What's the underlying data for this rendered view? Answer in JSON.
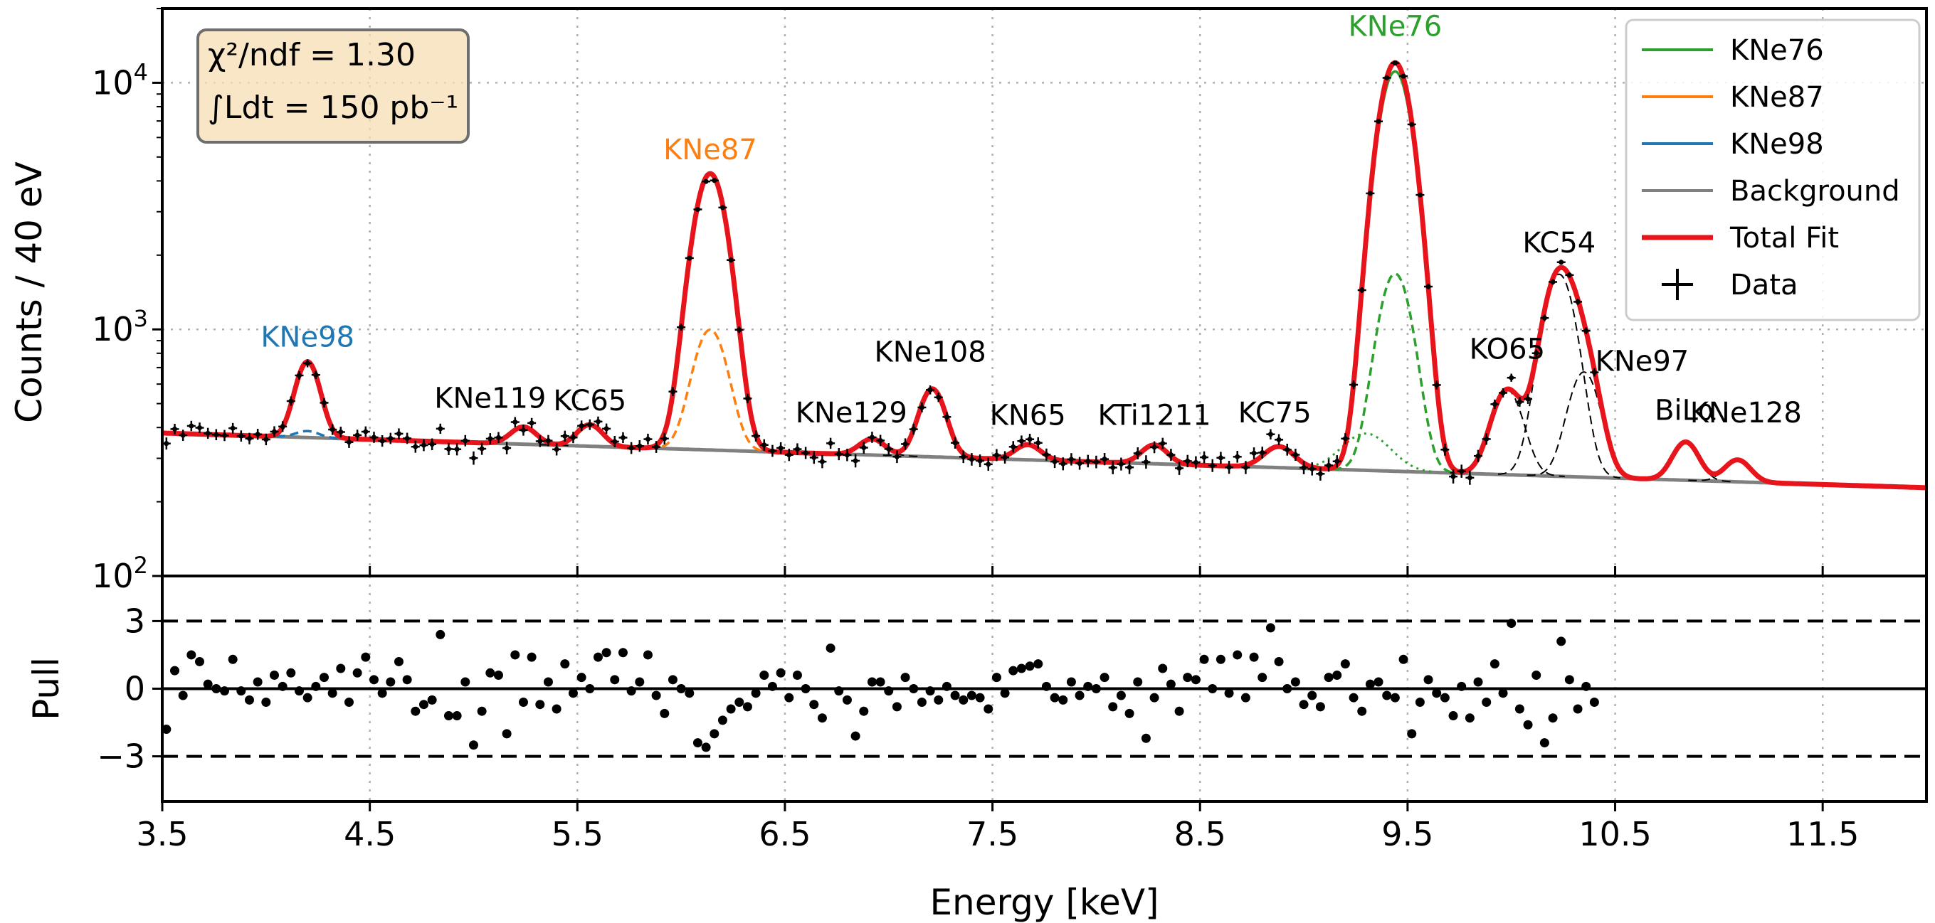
{
  "chart_data": [
    {
      "type": "line",
      "subplot": "spectrum",
      "ylabel": "Counts / 40 eV",
      "yscale": "log",
      "xlim": [
        3.5,
        12.0
      ],
      "ylim": [
        100,
        20000
      ],
      "y_ticks": [
        {
          "value": 100,
          "base": "10",
          "exp": "2"
        },
        {
          "value": 1000,
          "base": "10",
          "exp": "3"
        },
        {
          "value": 10000,
          "base": "10",
          "exp": "4"
        }
      ],
      "grid": true,
      "legend_position": "top-right",
      "info_box": {
        "chi2_label": "χ²/ndf = 1.30",
        "lumi_label": "∫Ldt = 150 pb⁻¹"
      },
      "background": {
        "x": [
          3.5,
          12.0
        ],
        "y": [
          380,
          228
        ],
        "color": "#808080"
      },
      "peaks": [
        {
          "label": "KNe98",
          "center": 4.2,
          "sigma": 0.055,
          "amplitude": 375,
          "color": "#1f77b4",
          "label_y": 850,
          "label_x": 4.2
        },
        {
          "label": "KNe119",
          "center": 5.24,
          "sigma": 0.06,
          "amplitude": 60,
          "color": "#000000",
          "label_y": 480,
          "label_x": 5.08
        },
        {
          "label": "KC65",
          "center": 5.56,
          "sigma": 0.06,
          "amplitude": 75,
          "color": "#000000",
          "label_y": 470,
          "label_x": 5.56
        },
        {
          "label": "KNe87",
          "center": 6.14,
          "sigma": 0.075,
          "amplitude": 3960,
          "color": "#ff7f0e",
          "label_y": 4900,
          "label_x": 6.14
        },
        {
          "label": "KNe129",
          "center": 6.92,
          "sigma": 0.06,
          "amplitude": 50,
          "color": "#000000",
          "label_y": 420,
          "label_x": 6.82
        },
        {
          "label": "KNe108",
          "center": 7.21,
          "sigma": 0.06,
          "amplitude": 270,
          "color": "#000000",
          "label_y": 740,
          "label_x": 7.2
        },
        {
          "label": "KN65",
          "center": 7.67,
          "sigma": 0.06,
          "amplitude": 45,
          "color": "#000000",
          "label_y": 410,
          "label_x": 7.67
        },
        {
          "label": "KTi1211",
          "center": 8.28,
          "sigma": 0.06,
          "amplitude": 55,
          "color": "#000000",
          "label_y": 410,
          "label_x": 8.28
        },
        {
          "label": "KC75",
          "center": 8.88,
          "sigma": 0.07,
          "amplitude": 60,
          "color": "#000000",
          "label_y": 420,
          "label_x": 8.86
        },
        {
          "label": "KNe76",
          "center": 9.44,
          "sigma": 0.075,
          "amplitude": 11800,
          "color": "#2ca02c",
          "label_y": 15500,
          "label_x": 9.44
        },
        {
          "label": "KO65",
          "center": 9.98,
          "sigma": 0.07,
          "amplitude": 310,
          "color": "#000000",
          "label_y": 760,
          "label_x": 9.98
        },
        {
          "label": "KC54",
          "center": 10.23,
          "sigma": 0.075,
          "amplitude": 1420,
          "color": "#000000",
          "label_y": 2050,
          "label_x": 10.23
        },
        {
          "label": "KNe97",
          "center": 10.35,
          "sigma": 0.07,
          "amplitude": 420,
          "color": "#000000",
          "label_y": 680,
          "label_x": 10.63
        },
        {
          "label": "BiLα",
          "center": 10.84,
          "sigma": 0.06,
          "amplitude": 105,
          "color": "#000000",
          "label_y": 430,
          "label_x": 10.84
        },
        {
          "label": "KNe128",
          "center": 11.09,
          "sigma": 0.06,
          "amplitude": 55,
          "color": "#000000",
          "label_y": 420,
          "label_x": 11.13
        }
      ],
      "legend": [
        {
          "label": "KNe76",
          "kind": "line",
          "color": "#2ca02c"
        },
        {
          "label": "KNe87",
          "kind": "line",
          "color": "#ff7f0e"
        },
        {
          "label": "KNe98",
          "kind": "line",
          "color": "#1f77b4"
        },
        {
          "label": "Background",
          "kind": "line",
          "color": "#808080"
        },
        {
          "label": "Total Fit",
          "kind": "line",
          "color": "#e8141c"
        },
        {
          "label": "Data",
          "kind": "marker",
          "color": "#000000"
        }
      ]
    },
    {
      "type": "scatter",
      "subplot": "pull",
      "xlabel": "Energy [keV]",
      "ylabel": "Pull",
      "xlim": [
        3.5,
        12.0
      ],
      "ylim": [
        -5,
        5
      ],
      "x_ticks": [
        "3.5",
        "4.5",
        "5.5",
        "6.5",
        "7.5",
        "8.5",
        "9.5",
        "10.5",
        "11.5"
      ],
      "y_ticks": [
        "3",
        "0",
        "−3"
      ],
      "reference_lines": [
        3,
        0,
        -3
      ],
      "x_start": 3.5,
      "x_step": 0.04,
      "pulls": [
        -1.8,
        0.8,
        -0.3,
        1.5,
        1.2,
        0.2,
        0.0,
        -0.1,
        1.3,
        -0.1,
        -0.5,
        0.3,
        -0.6,
        0.6,
        0.1,
        0.7,
        -0.1,
        -0.4,
        0.1,
        0.5,
        -0.2,
        0.9,
        -0.6,
        0.7,
        1.4,
        0.4,
        -0.2,
        0.3,
        1.2,
        0.4,
        -1.0,
        -0.7,
        -0.5,
        2.4,
        -1.2,
        -1.2,
        0.3,
        -2.5,
        -1.0,
        0.7,
        0.6,
        -2.0,
        1.5,
        -0.6,
        1.4,
        -0.7,
        0.3,
        -0.9,
        1.1,
        -0.2,
        0.5,
        0.0,
        1.4,
        1.6,
        0.4,
        1.6,
        -0.1,
        0.3,
        1.5,
        -0.3,
        -1.1,
        0.4,
        0.0,
        -0.2,
        -2.4,
        -2.6,
        -2.0,
        -1.4,
        -0.9,
        -0.6,
        -0.8,
        -0.2,
        0.6,
        0.1,
        0.7,
        -0.4,
        0.6,
        0.0,
        -0.7,
        -1.3,
        1.8,
        -0.1,
        -0.5,
        -2.1,
        -1.0,
        0.3,
        0.3,
        -0.1,
        -0.8,
        0.5,
        0.0,
        -0.6,
        -0.1,
        -0.5,
        0.1,
        -0.3,
        -0.5,
        -0.3,
        -0.4,
        -0.9,
        0.5,
        -0.2,
        0.8,
        0.9,
        1.0,
        1.1,
        0.1,
        -0.4,
        -0.5,
        0.3,
        -0.3,
        0.1,
        0.0,
        0.5,
        -0.8,
        -0.3,
        -1.1,
        0.3,
        -2.2,
        -0.4,
        0.9,
        0.2,
        -1.0,
        0.5,
        0.4,
        1.3,
        0.0,
        1.3,
        -0.2,
        1.5,
        -0.4,
        1.4,
        0.5,
        2.7,
        1.2,
        0.0,
        0.3,
        -0.7,
        -0.3,
        -0.8,
        0.5,
        0.6,
        1.1,
        -0.4,
        -1.0,
        0.2,
        0.3,
        -0.3,
        -0.4,
        1.3,
        -2.0,
        -0.6,
        0.4,
        -0.2,
        -0.4,
        -1.2,
        0.1,
        -1.3,
        0.3,
        -0.6,
        1.1,
        -0.2,
        2.9,
        -0.9,
        -1.6,
        0.6,
        -2.4,
        -1.3,
        2.1,
        0.4,
        -0.9,
        0.1,
        -0.6
      ]
    }
  ]
}
